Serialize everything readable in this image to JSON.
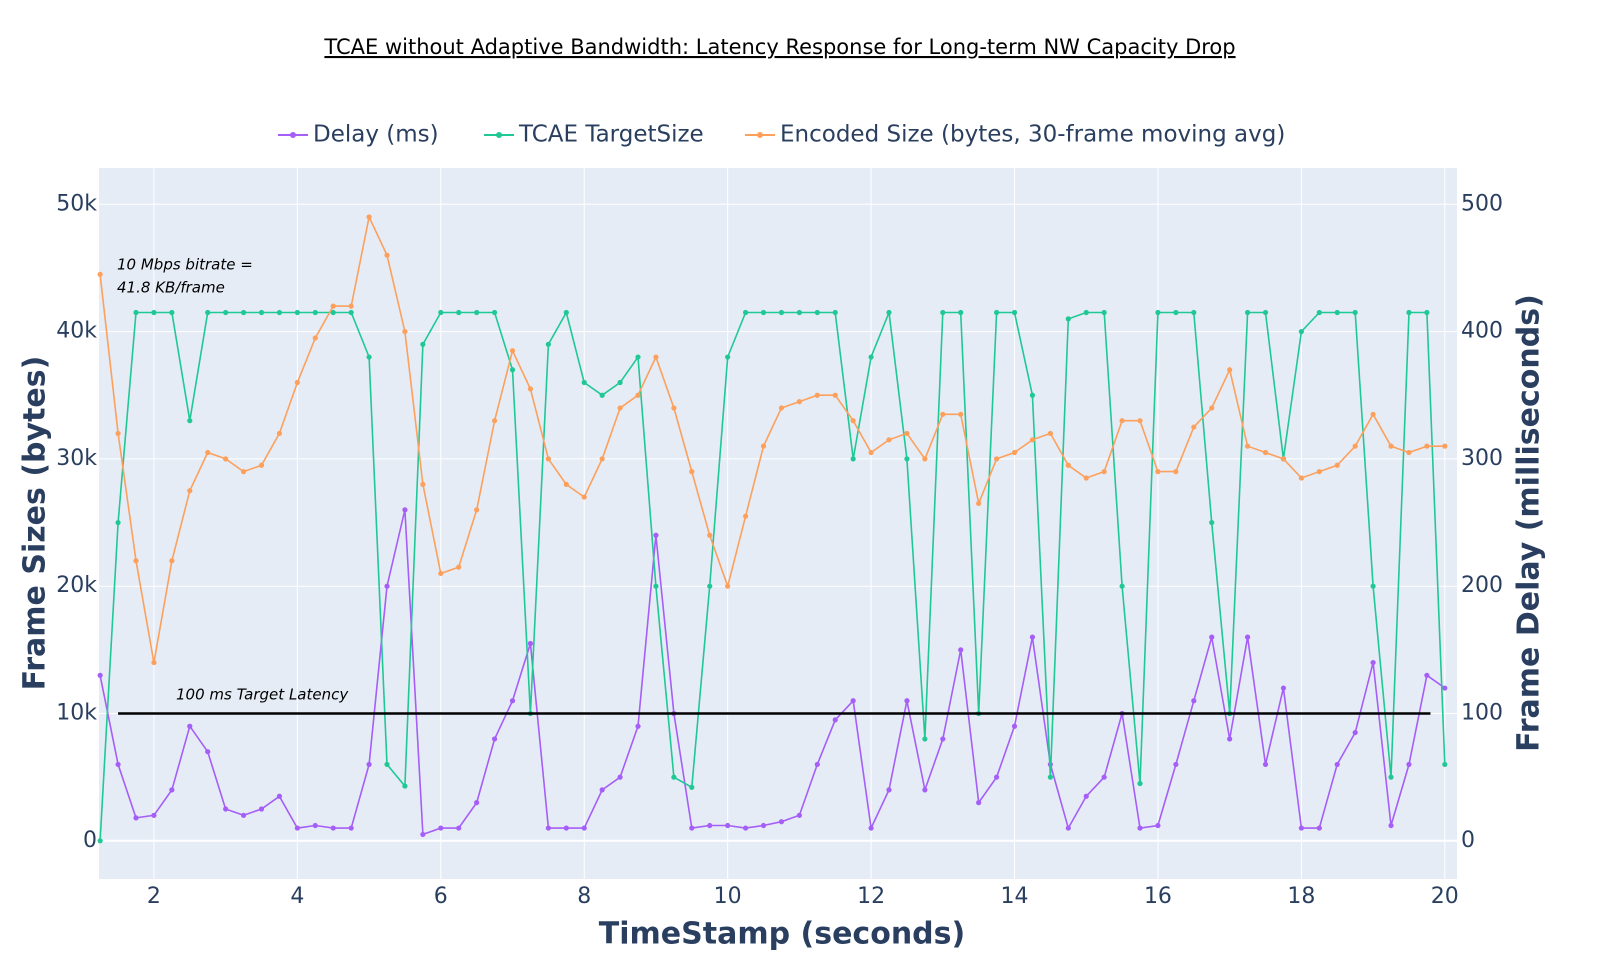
{
  "chart_data": {
    "type": "line",
    "title": "TCAE without Adaptive Bandwidth: Latency Response for Long-term NW Capacity Drop",
    "x_label": "TimeStamp (seconds)",
    "y_label": "Frame Sizes (bytes)",
    "y2_label": "Frame Delay (milliseconds)",
    "annotations": [
      [
        "10 Mbps bitrate =",
        "41.8 KB/frame"
      ],
      [
        "100 ms Target Latency"
      ]
    ],
    "target_line": {
      "x0": 1.5,
      "x1": 19.8,
      "y": 100,
      "axis": "y2",
      "color": "#000000"
    },
    "x": [
      1.25,
      1.5,
      1.75,
      2.0,
      2.25,
      2.5,
      2.75,
      3.0,
      3.25,
      3.5,
      3.75,
      4.0,
      4.25,
      4.5,
      4.75,
      5.0,
      5.25,
      5.5,
      5.75,
      6.0,
      6.25,
      6.5,
      6.75,
      7.0,
      7.25,
      7.5,
      7.75,
      8.0,
      8.25,
      8.5,
      8.75,
      9.0,
      9.25,
      9.5,
      9.75,
      10.0,
      10.25,
      10.5,
      10.75,
      11.0,
      11.25,
      11.5,
      11.75,
      12.0,
      12.25,
      12.5,
      12.75,
      13.0,
      13.25,
      13.5,
      13.75,
      14.0,
      14.25,
      14.5,
      14.75,
      15.0,
      15.25,
      15.5,
      15.75,
      16.0,
      16.25,
      16.5,
      16.75,
      17.0,
      17.25,
      17.5,
      17.75,
      18.0,
      18.25,
      18.5,
      18.75,
      19.0,
      19.25,
      19.5,
      19.75,
      20.0
    ],
    "series": [
      {
        "name": "Delay (ms)",
        "color": "#a55ef7",
        "axis": "y2",
        "values": [
          130,
          60,
          18,
          20,
          40,
          90,
          70,
          25,
          20,
          25,
          35,
          10,
          12,
          10,
          10,
          60,
          200,
          260,
          5,
          10,
          10,
          30,
          80,
          110,
          155,
          10,
          10,
          10,
          40,
          50,
          90,
          240,
          100,
          10,
          12,
          12,
          10,
          12,
          15,
          20,
          60,
          95,
          110,
          10,
          40,
          110,
          40,
          80,
          150,
          30,
          50,
          90,
          160,
          60,
          10,
          35,
          50,
          100,
          10,
          12,
          60,
          110,
          160,
          80,
          160,
          60,
          120,
          10,
          10,
          60,
          85,
          140,
          12,
          60,
          130,
          120
        ]
      },
      {
        "name": "TCAE TargetSize",
        "color": "#1fc895",
        "values": [
          0,
          25000,
          41500,
          41500,
          41500,
          33000,
          41500,
          41500,
          41500,
          41500,
          41500,
          41500,
          41500,
          41500,
          41500,
          38000,
          6000,
          4300,
          39000,
          41500,
          41500,
          41500,
          41500,
          37000,
          10000,
          39000,
          41500,
          36000,
          35000,
          36000,
          38000,
          20000,
          5000,
          4200,
          20000,
          38000,
          41500,
          41500,
          41500,
          41500,
          41500,
          41500,
          30000,
          38000,
          41500,
          30000,
          8000,
          41500,
          41500,
          10000,
          41500,
          41500,
          35000,
          5000,
          41000,
          41500,
          41500,
          20000,
          4500,
          41500,
          41500,
          41500,
          25000,
          10000,
          41500,
          41500,
          30000,
          40000,
          41500,
          41500,
          41500,
          20000,
          5000,
          41500,
          41500,
          6000
        ]
      },
      {
        "name": "Encoded Size (bytes, 30-frame moving avg)",
        "color": "#fda05c",
        "values": [
          44500,
          32000,
          22000,
          14000,
          22000,
          27500,
          30500,
          30000,
          29000,
          29500,
          32000,
          36000,
          39500,
          42000,
          42000,
          49000,
          46000,
          40000,
          28000,
          21000,
          21500,
          26000,
          33000,
          38500,
          35500,
          30000,
          28000,
          27000,
          30000,
          34000,
          35000,
          38000,
          34000,
          29000,
          24000,
          20000,
          25500,
          31000,
          34000,
          34500,
          35000,
          35000,
          33000,
          30500,
          31500,
          32000,
          30000,
          33500,
          33500,
          26500,
          30000,
          30500,
          31500,
          32000,
          29500,
          28500,
          29000,
          33000,
          33000,
          29000,
          29000,
          32500,
          34000,
          37000,
          31000,
          30500,
          30000,
          28500,
          29000,
          29500,
          31000,
          33500,
          31000,
          30500,
          31000,
          31000
        ]
      }
    ],
    "xlim": [
      1.234,
      20.17
    ],
    "xticks": [
      2,
      4,
      6,
      8,
      10,
      12,
      14,
      16,
      18,
      20
    ],
    "ylim": [
      -3000,
      52850
    ],
    "yticks": [
      0,
      {
        "value": 10000,
        "label": "10k"
      },
      {
        "value": 20000,
        "label": "20k"
      },
      {
        "value": 30000,
        "label": "30k"
      },
      {
        "value": 40000,
        "label": "40k"
      },
      {
        "value": 50000,
        "label": "50k"
      }
    ],
    "y2lim": [
      -30,
      528.5
    ],
    "y2ticks": [
      0,
      100,
      200,
      300,
      400,
      500
    ],
    "grid": true,
    "legend": "top"
  }
}
